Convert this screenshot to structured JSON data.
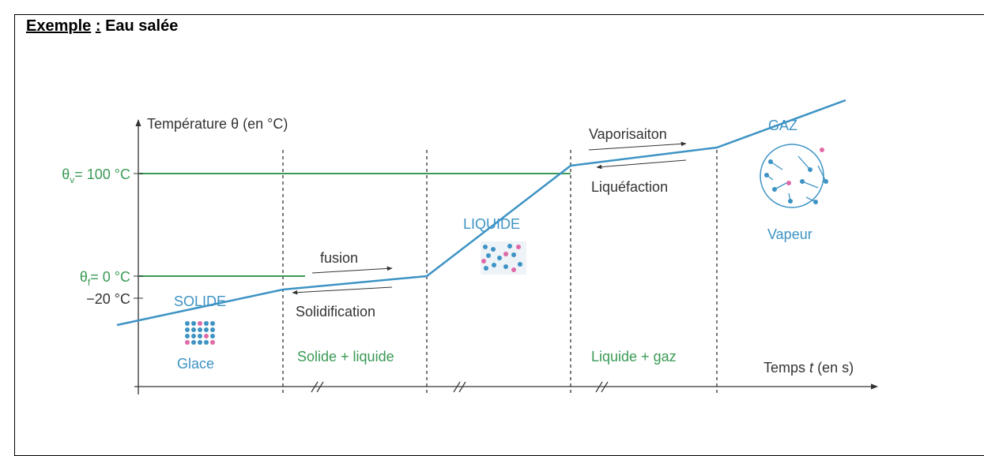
{
  "heading": {
    "label": "Exemple",
    "colon": ":",
    "title": "Eau salée"
  },
  "diagram": {
    "y_axis": {
      "symbol": "Température",
      "theta": "θ",
      "unit": "(en °C)"
    },
    "x_axis": {
      "label": "Temps",
      "variable": "t",
      "unit": "(en s)"
    },
    "levels": [
      {
        "symbol": "θ",
        "subscript": "v",
        "text": "= 100 °C"
      },
      {
        "symbol": "θ",
        "subscript": "f",
        "text": "= 0 °C"
      },
      {
        "text": "−20 °C"
      }
    ],
    "states": [
      {
        "name": "SOLIDE",
        "caption": "Glace"
      },
      {
        "name": "LIQUIDE"
      },
      {
        "name": "GAZ",
        "caption": "Vapeur"
      }
    ],
    "transitions": {
      "fusion": "fusion",
      "solidification": "Solidification",
      "vaporisation": "Vaporisaiton",
      "liquefaction": "Liquéfaction"
    },
    "zones": [
      "Solide + liquide",
      "Liquide + gaz"
    ]
  }
}
